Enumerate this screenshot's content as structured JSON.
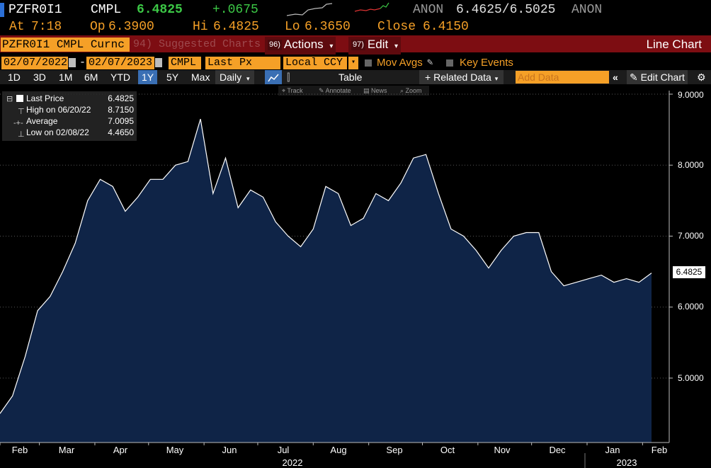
{
  "header": {
    "ticker": "PZFR0I1",
    "source": "CMPL",
    "last": "6.4825",
    "change": "+.0675",
    "bid_source": "ANON",
    "bid_ask": "6.4625/6.5025",
    "ask_source": "ANON",
    "at_label": "At",
    "at_time": "7:18",
    "open_label": "Op",
    "open_value": "6.3900",
    "high_label": "Hi",
    "high_value": "6.4825",
    "low_label": "Lo",
    "low_value": "6.3650",
    "close_label": "Close",
    "close_value": "6.4150"
  },
  "menubar": {
    "ticker_field": "PZFR0I1 CMPL Curnc",
    "suggested_num": "94)",
    "suggested_label": "Suggested Charts",
    "actions_num": "96)",
    "actions_label": "Actions",
    "edit_num": "97)",
    "edit_label": "Edit",
    "chart_type": "Line Chart"
  },
  "fields": {
    "start_date": "02/07/2022",
    "dash": "-",
    "end_date": "02/07/2023",
    "source": "CMPL",
    "price_field": "Last Px",
    "currency": "Local CCY",
    "mov_avgs": "Mov Avgs",
    "key_events": "Key Events"
  },
  "toolbar": {
    "periods": [
      "1D",
      "3D",
      "1M",
      "6M",
      "YTD",
      "1Y",
      "5Y",
      "Max"
    ],
    "selected_period": "1Y",
    "frequency": "Daily",
    "table": "Table",
    "related": "Related Data",
    "add_data_placeholder": "Add Data",
    "edit_chart": "Edit Chart"
  },
  "subtoolbar": {
    "track": "Track",
    "annotate": "Annotate",
    "news": "News",
    "zoom": "Zoom"
  },
  "legend": {
    "last_price_label": "Last Price",
    "last_price_value": "6.4825",
    "high_label": "High on 06/20/22",
    "high_value": "8.7150",
    "average_label": "Average",
    "average_value": "7.0095",
    "low_label": "Low on 02/08/22",
    "low_value": "4.4650"
  },
  "colors": {
    "orange": "#f5a027",
    "red_bar": "#7d0d12",
    "green": "#3cc846",
    "chart_fill": "#0f2447",
    "line": "#ffffff"
  },
  "chart_data": {
    "type": "area",
    "title": "",
    "xlabel": "",
    "ylabel": "",
    "ylim": [
      4.0,
      9.0
    ],
    "yticks": [
      "9.0000",
      "8.0000",
      "7.0000",
      "6.0000",
      "5.0000"
    ],
    "last_label": "6.4825",
    "x_months": [
      "Feb",
      "Mar",
      "Apr",
      "May",
      "Jun",
      "Jul",
      "Aug",
      "Sep",
      "Oct",
      "Nov",
      "Dec",
      "Jan",
      "Feb"
    ],
    "x_years": [
      "2022",
      "2023"
    ],
    "x": [
      "2022-02-07",
      "2022-02-14",
      "2022-02-21",
      "2022-02-28",
      "2022-03-07",
      "2022-03-14",
      "2022-03-21",
      "2022-03-28",
      "2022-04-04",
      "2022-04-11",
      "2022-04-18",
      "2022-04-25",
      "2022-05-02",
      "2022-05-09",
      "2022-05-16",
      "2022-05-23",
      "2022-05-30",
      "2022-06-06",
      "2022-06-13",
      "2022-06-20",
      "2022-06-27",
      "2022-07-04",
      "2022-07-11",
      "2022-07-18",
      "2022-07-25",
      "2022-08-01",
      "2022-08-08",
      "2022-08-15",
      "2022-08-22",
      "2022-08-29",
      "2022-09-05",
      "2022-09-12",
      "2022-09-19",
      "2022-09-26",
      "2022-10-03",
      "2022-10-10",
      "2022-10-17",
      "2022-10-24",
      "2022-10-31",
      "2022-11-07",
      "2022-11-14",
      "2022-11-21",
      "2022-11-28",
      "2022-12-05",
      "2022-12-12",
      "2022-12-19",
      "2022-12-26",
      "2023-01-02",
      "2023-01-09",
      "2023-01-16",
      "2023-01-23",
      "2023-01-30",
      "2023-02-06"
    ],
    "series": [
      {
        "values": [
          4.5,
          4.75,
          5.3,
          5.95,
          6.15,
          6.5,
          6.9,
          7.5,
          7.8,
          7.7,
          7.35,
          7.55,
          7.8,
          7.8,
          8.0,
          8.05,
          8.65,
          7.6,
          8.1,
          7.4,
          7.65,
          7.55,
          7.2,
          7.0,
          6.85,
          7.1,
          7.7,
          7.6,
          7.15,
          7.25,
          7.6,
          7.5,
          7.75,
          8.1,
          8.15,
          7.6,
          7.1,
          7.0,
          6.8,
          6.55,
          6.8,
          7.0,
          7.05,
          7.05,
          6.5,
          6.3,
          6.35,
          6.4,
          6.45,
          6.35,
          6.4,
          6.35,
          6.48
        ]
      }
    ]
  }
}
